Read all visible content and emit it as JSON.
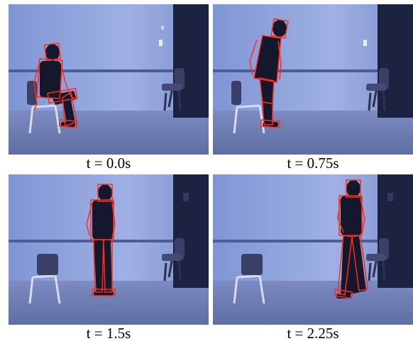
{
  "frames": [
    {
      "caption": "t = 0.0s"
    },
    {
      "caption": "t = 0.75s"
    },
    {
      "caption": "t = 1.5s"
    },
    {
      "caption": "t = 2.25s"
    }
  ],
  "colors": {
    "wall": "#8a9ed8",
    "floor": "#6f7fb5",
    "door": "#1c2340",
    "tracking_overlay": "#ff2a1a",
    "person": "#14182c"
  }
}
